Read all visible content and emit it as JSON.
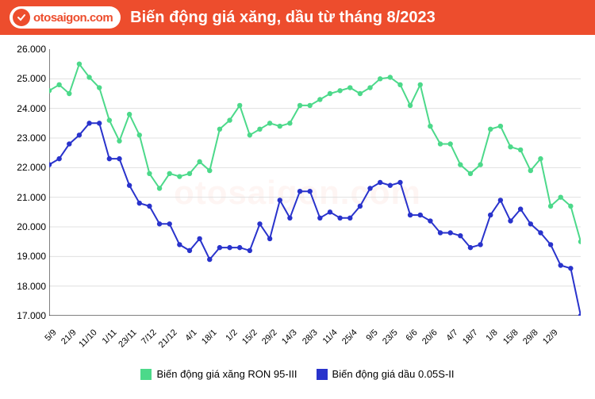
{
  "header": {
    "logo_text": "otosaigon.com",
    "title": "Biến động giá xăng, dầu từ tháng 8/2023"
  },
  "watermark": "otosaigon.com",
  "chart": {
    "type": "line",
    "background_color": "#ffffff",
    "grid_color": "#e0e0e0",
    "axis_color": "#000000",
    "watermark_color": "rgba(237,77,45,0.06)",
    "ylim": [
      17000,
      26000
    ],
    "ytick_step": 1000,
    "yticks": [
      "17.000",
      "18.000",
      "19.000",
      "20.000",
      "21.000",
      "22.000",
      "23.000",
      "24.000",
      "25.000",
      "26.000"
    ],
    "categories": [
      "5/9",
      "21/9",
      "11/10",
      "1/11",
      "23/11",
      "7/12",
      "21/12",
      "4/1",
      "18/1",
      "1/2",
      "15/2",
      "29/2",
      "14/3",
      "28/3",
      "11/4",
      "25/4",
      "9/5",
      "23/5",
      "6/6",
      "20/6",
      "4/7",
      "18/7",
      "1/8",
      "15/8",
      "29/8",
      "12/9"
    ],
    "x_label_every": 2,
    "label_fontsize": 12,
    "marker_size": 3.2,
    "line_width": 2,
    "series": [
      {
        "name": "gasoline",
        "label": "Biến động giá xăng RON 95-III",
        "color": "#4cd98a",
        "values": [
          24600,
          24800,
          24500,
          25500,
          25050,
          24700,
          23600,
          22900,
          23800,
          23100,
          21800,
          21300,
          21800,
          21700,
          21800,
          22200,
          21900,
          23300,
          23600,
          24100,
          23100,
          23300,
          23500,
          23400,
          23500,
          24100,
          24100,
          24300,
          24500,
          24600,
          24700,
          24500,
          24700,
          25000,
          25050,
          24800,
          24100,
          24800,
          23400,
          22800,
          22800,
          22100,
          21800,
          22100,
          23300,
          23400,
          22700,
          22600,
          21900,
          22300,
          20700,
          21000,
          20700,
          19500
        ]
      },
      {
        "name": "diesel",
        "label": "Biến động giá dầu 0.05S-II",
        "color": "#2933cc",
        "values": [
          22100,
          22300,
          22800,
          23100,
          23500,
          23500,
          22300,
          22300,
          21400,
          20800,
          20700,
          20100,
          20100,
          19400,
          19200,
          19600,
          18900,
          19300,
          19300,
          19300,
          19200,
          20100,
          19600,
          20900,
          20300,
          21200,
          21200,
          20300,
          20500,
          20300,
          20300,
          20700,
          21300,
          21500,
          21400,
          21500,
          20400,
          20400,
          20200,
          19800,
          19800,
          19700,
          19300,
          19400,
          20400,
          20900,
          20200,
          20600,
          20100,
          19800,
          19400,
          18700,
          18600,
          17000
        ]
      }
    ],
    "legend": {
      "position": "bottom",
      "items": [
        {
          "swatch": "#4cd98a",
          "label": "Biến động giá xăng RON 95-III"
        },
        {
          "swatch": "#2933cc",
          "label": "Biến động giá dầu 0.05S-II"
        }
      ]
    }
  }
}
